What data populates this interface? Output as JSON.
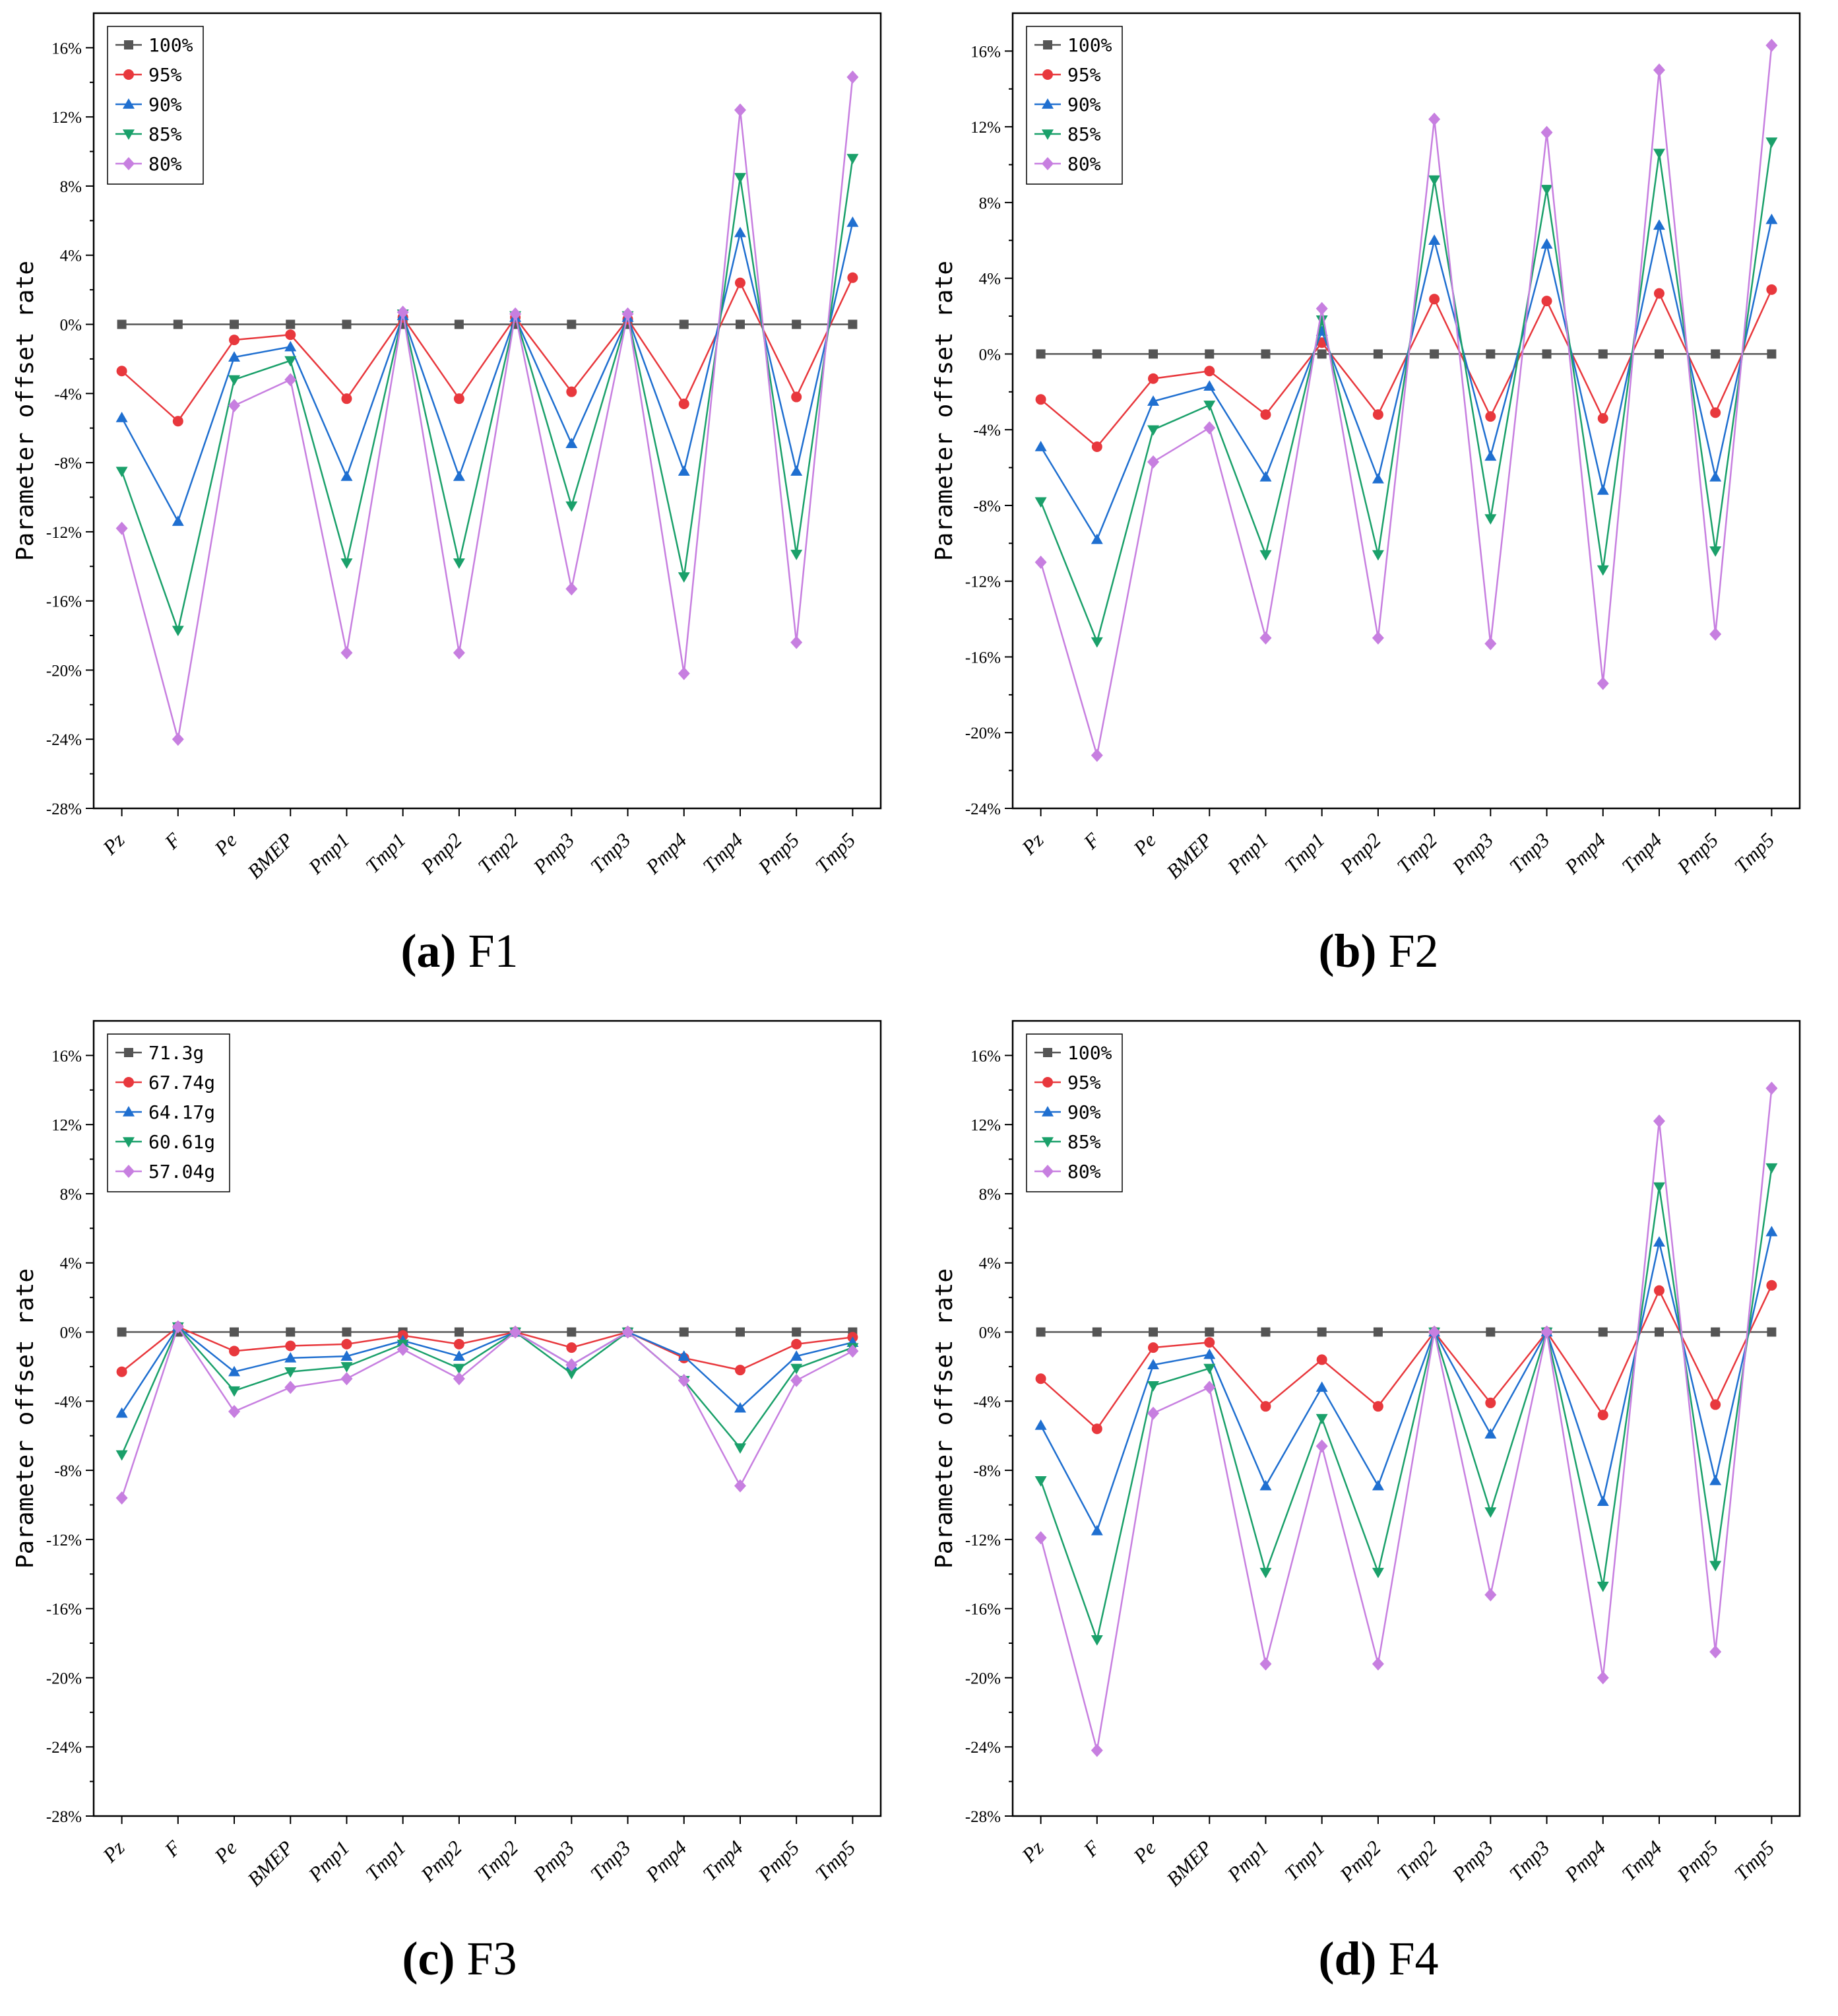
{
  "figure": {
    "ylabel": "Parameter offset rate",
    "categories": [
      "Pz",
      "F",
      "Pe",
      "BMEP",
      "Pmp1",
      "Tmp1",
      "Pmp2",
      "Tmp2",
      "Pmp3",
      "Tmp3",
      "Pmp4",
      "Tmp4",
      "Pmp5",
      "Tmp5"
    ],
    "series_colors": [
      "#555555",
      "#e8383d",
      "#1f6fd0",
      "#1aa06a",
      "#c77fe0"
    ],
    "series_markers": [
      "square",
      "circle",
      "triangle-up",
      "triangle-down",
      "diamond"
    ]
  },
  "chart_data": [
    {
      "type": "line",
      "caption_letter": "(a)",
      "caption_text": "F1",
      "ylabel": "Parameter offset rate",
      "ylim": [
        -28,
        18
      ],
      "yticks": [
        16,
        12,
        8,
        4,
        0,
        -4,
        -8,
        -12,
        -16,
        -20,
        -24,
        -28
      ],
      "legend_position": "top-left",
      "categories": [
        "Pz",
        "F",
        "Pe",
        "BMEP",
        "Pmp1",
        "Tmp1",
        "Pmp2",
        "Tmp2",
        "Pmp3",
        "Tmp3",
        "Pmp4",
        "Tmp4",
        "Pmp5",
        "Tmp5"
      ],
      "series": [
        {
          "name": "100%",
          "values": [
            0,
            0,
            0,
            0,
            0,
            0,
            0,
            0,
            0,
            0,
            0,
            0,
            0,
            0
          ]
        },
        {
          "name": "95%",
          "values": [
            -2.7,
            -5.6,
            -0.9,
            -0.6,
            -4.3,
            0.4,
            -4.3,
            0.4,
            -3.9,
            0.3,
            -4.6,
            2.4,
            -4.2,
            2.7
          ]
        },
        {
          "name": "90%",
          "values": [
            -5.4,
            -11.4,
            -1.9,
            -1.3,
            -8.8,
            0.5,
            -8.8,
            0.4,
            -6.9,
            0.4,
            -8.5,
            5.3,
            -8.5,
            5.9
          ]
        },
        {
          "name": "85%",
          "values": [
            -8.5,
            -17.7,
            -3.2,
            -2.1,
            -13.8,
            0.6,
            -13.8,
            0.5,
            -10.5,
            0.5,
            -14.6,
            8.5,
            -13.3,
            9.6
          ]
        },
        {
          "name": "80%",
          "values": [
            -11.8,
            -24.0,
            -4.7,
            -3.2,
            -19.0,
            0.7,
            -19.0,
            0.6,
            -15.3,
            0.6,
            -20.2,
            12.4,
            -18.4,
            14.3
          ]
        }
      ]
    },
    {
      "type": "line",
      "caption_letter": "(b)",
      "caption_text": "F2",
      "ylabel": "Parameter offset rate",
      "ylim": [
        -24,
        18
      ],
      "yticks": [
        16,
        12,
        8,
        4,
        0,
        -4,
        -8,
        -12,
        -16,
        -20,
        -24
      ],
      "legend_position": "top-left",
      "categories": [
        "Pz",
        "F",
        "Pe",
        "BMEP",
        "Pmp1",
        "Tmp1",
        "Pmp2",
        "Tmp2",
        "Pmp3",
        "Tmp3",
        "Pmp4",
        "Tmp4",
        "Pmp5",
        "Tmp5"
      ],
      "series": [
        {
          "name": "100%",
          "values": [
            0,
            0,
            0,
            0,
            0,
            0,
            0,
            0,
            0,
            0,
            0,
            0,
            0,
            0
          ]
        },
        {
          "name": "95%",
          "values": [
            -2.4,
            -4.9,
            -1.3,
            -0.9,
            -3.2,
            0.6,
            -3.2,
            2.9,
            -3.3,
            2.8,
            -3.4,
            3.2,
            -3.1,
            3.4
          ]
        },
        {
          "name": "90%",
          "values": [
            -4.9,
            -9.8,
            -2.5,
            -1.7,
            -6.5,
            1.2,
            -6.6,
            6.0,
            -5.4,
            5.8,
            -7.2,
            6.8,
            -6.5,
            7.1
          ]
        },
        {
          "name": "85%",
          "values": [
            -7.8,
            -15.2,
            -4.0,
            -2.7,
            -10.6,
            1.8,
            -10.6,
            9.2,
            -8.7,
            8.7,
            -11.4,
            10.6,
            -10.4,
            11.2
          ]
        },
        {
          "name": "80%",
          "values": [
            -11.0,
            -21.2,
            -5.7,
            -3.9,
            -15.0,
            2.4,
            -15.0,
            12.4,
            -15.3,
            11.7,
            -17.4,
            15.0,
            -14.8,
            16.3
          ]
        }
      ]
    },
    {
      "type": "line",
      "caption_letter": "(c)",
      "caption_text": "F3",
      "ylabel": "Parameter offset rate",
      "ylim": [
        -28,
        18
      ],
      "yticks": [
        16,
        12,
        8,
        4,
        0,
        -4,
        -8,
        -12,
        -16,
        -20,
        -24,
        -28
      ],
      "legend_position": "top-left",
      "categories": [
        "Pz",
        "F",
        "Pe",
        "BMEP",
        "Pmp1",
        "Tmp1",
        "Pmp2",
        "Tmp2",
        "Pmp3",
        "Tmp3",
        "Pmp4",
        "Tmp4",
        "Pmp5",
        "Tmp5"
      ],
      "series": [
        {
          "name": "71.3g",
          "values": [
            0,
            0,
            0,
            0,
            0,
            0,
            0,
            0,
            0,
            0,
            0,
            0,
            0,
            0
          ]
        },
        {
          "name": "67.74g",
          "values": [
            -2.3,
            0.3,
            -1.1,
            -0.8,
            -0.7,
            -0.2,
            -0.7,
            0.0,
            -0.9,
            0.0,
            -1.5,
            -2.2,
            -0.7,
            -0.3
          ]
        },
        {
          "name": "64.17g",
          "values": [
            -4.7,
            0.3,
            -2.3,
            -1.5,
            -1.4,
            -0.5,
            -1.4,
            0.0,
            -1.9,
            0.0,
            -1.4,
            -4.4,
            -1.4,
            -0.6
          ]
        },
        {
          "name": "60.61g",
          "values": [
            -7.1,
            0.3,
            -3.4,
            -2.3,
            -2.0,
            -0.7,
            -2.1,
            0.0,
            -2.4,
            0.0,
            -2.8,
            -6.7,
            -2.1,
            -0.9
          ]
        },
        {
          "name": "57.04g",
          "values": [
            -9.6,
            0.3,
            -4.6,
            -3.2,
            -2.7,
            -1.0,
            -2.7,
            0.0,
            -1.9,
            0.0,
            -2.8,
            -8.9,
            -2.8,
            -1.1
          ]
        }
      ]
    },
    {
      "type": "line",
      "caption_letter": "(d)",
      "caption_text": "F4",
      "ylabel": "Parameter offset rate",
      "ylim": [
        -28,
        18
      ],
      "yticks": [
        16,
        12,
        8,
        4,
        0,
        -4,
        -8,
        -12,
        -16,
        -20,
        -24,
        -28
      ],
      "legend_position": "top-left",
      "categories": [
        "Pz",
        "F",
        "Pe",
        "BMEP",
        "Pmp1",
        "Tmp1",
        "Pmp2",
        "Tmp2",
        "Pmp3",
        "Tmp3",
        "Pmp4",
        "Tmp4",
        "Pmp5",
        "Tmp5"
      ],
      "series": [
        {
          "name": "100%",
          "values": [
            0,
            0,
            0,
            0,
            0,
            0,
            0,
            0,
            0,
            0,
            0,
            0,
            0,
            0
          ]
        },
        {
          "name": "95%",
          "values": [
            -2.7,
            -5.6,
            -0.9,
            -0.6,
            -4.3,
            -1.6,
            -4.3,
            0.0,
            -4.1,
            0.0,
            -4.8,
            2.4,
            -4.2,
            2.7
          ]
        },
        {
          "name": "90%",
          "values": [
            -5.4,
            -11.5,
            -1.9,
            -1.3,
            -8.9,
            -3.2,
            -8.9,
            0.0,
            -5.9,
            0.0,
            -9.8,
            5.2,
            -8.6,
            5.8
          ]
        },
        {
          "name": "85%",
          "values": [
            -8.6,
            -17.8,
            -3.1,
            -2.1,
            -13.9,
            -5.0,
            -13.9,
            0.0,
            -10.4,
            0.0,
            -14.7,
            8.4,
            -13.5,
            9.5
          ]
        },
        {
          "name": "80%",
          "values": [
            -11.9,
            -24.2,
            -4.7,
            -3.2,
            -19.2,
            -6.6,
            -19.2,
            0.0,
            -15.2,
            0.0,
            -20.0,
            12.2,
            -18.5,
            14.1
          ]
        }
      ]
    }
  ]
}
